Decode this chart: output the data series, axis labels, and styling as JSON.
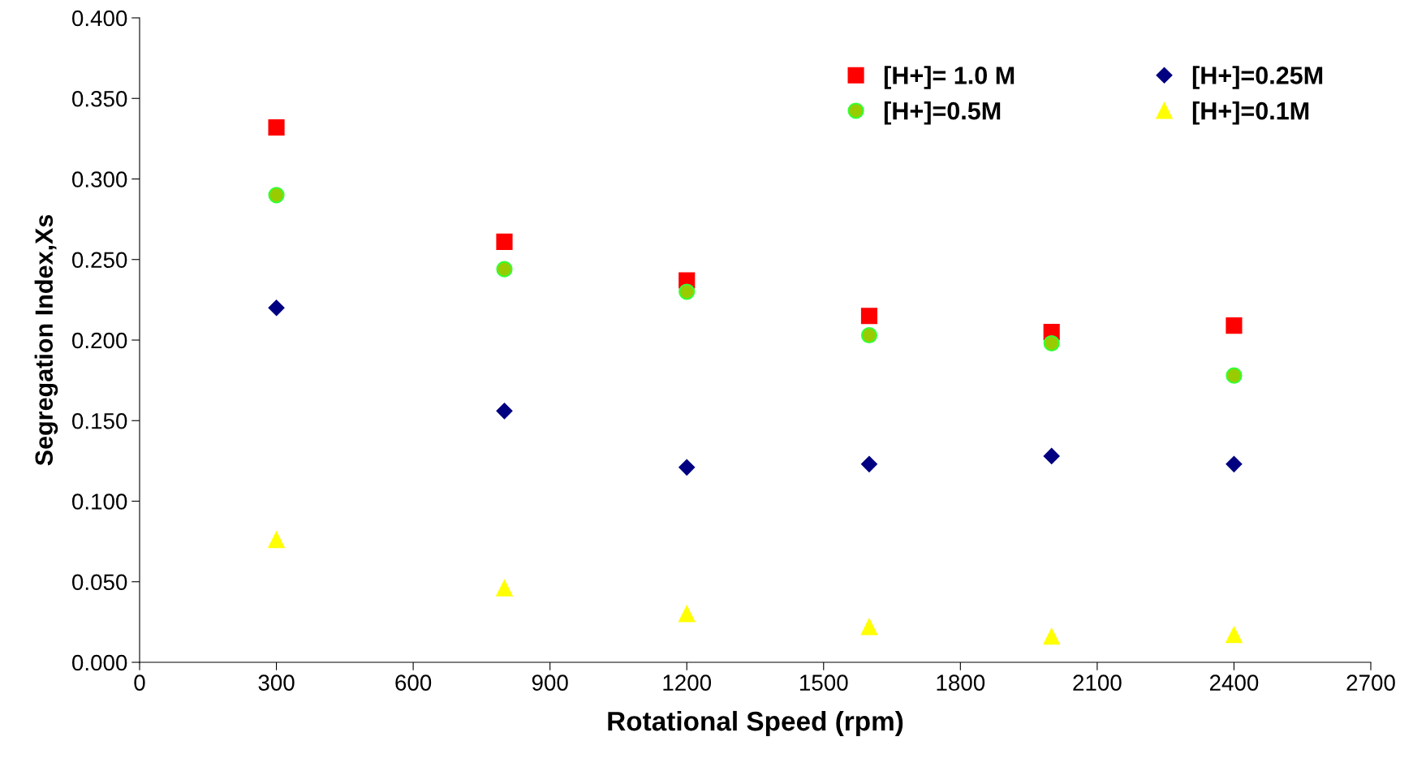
{
  "chart_data": {
    "type": "scatter",
    "xlabel": "Rotational Speed (rpm)",
    "ylabel": "Segregation Index,Xs",
    "x": [
      300,
      800,
      1200,
      1600,
      2000,
      2400
    ],
    "series": [
      {
        "name": "[H+]= 1.0 M",
        "color": "#ff0000",
        "marker": "square",
        "values": [
          0.332,
          0.261,
          0.237,
          0.215,
          0.205,
          0.209
        ]
      },
      {
        "name": "[H+]=0.5M",
        "color": "#99cc00",
        "marker": "circle",
        "values": [
          0.29,
          0.244,
          0.23,
          0.203,
          0.198,
          0.178
        ]
      },
      {
        "name": "[H+]=0.25M",
        "color": "#000080",
        "marker": "diamond",
        "values": [
          0.22,
          0.156,
          0.121,
          0.123,
          0.128,
          0.123
        ]
      },
      {
        "name": "[H+]=0.1M",
        "color": "#ffff00",
        "marker": "triangle",
        "values": [
          0.076,
          0.046,
          0.03,
          0.022,
          0.016,
          0.017
        ]
      }
    ],
    "xlim": [
      0,
      2700
    ],
    "xticks": [
      0,
      300,
      600,
      900,
      1200,
      1500,
      1800,
      2100,
      2400,
      2700
    ],
    "ylim": [
      0,
      0.4
    ],
    "yticks": [
      {
        "value": 0,
        "label": "0.000"
      },
      {
        "value": 0.05,
        "label": "0.050"
      },
      {
        "value": 0.1,
        "label": "0.100"
      },
      {
        "value": 0.15,
        "label": "0.150"
      },
      {
        "value": 0.2,
        "label": "0.200"
      },
      {
        "value": 0.25,
        "label": "0.250"
      },
      {
        "value": 0.3,
        "label": "0.300"
      },
      {
        "value": 0.35,
        "label": "0.350"
      },
      {
        "value": 0.4,
        "label": "0.400"
      }
    ],
    "grid": false,
    "legend": "top right"
  }
}
